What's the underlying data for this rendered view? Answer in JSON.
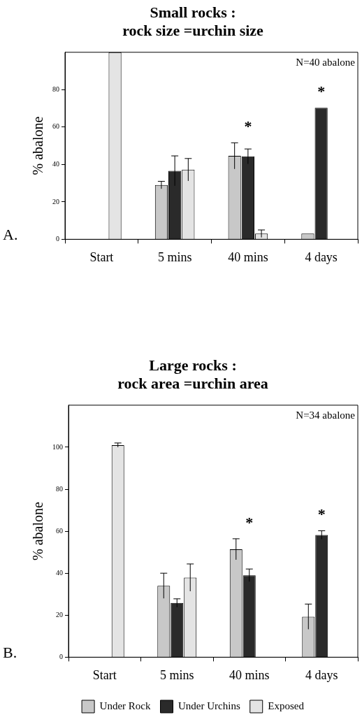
{
  "chart_data": [
    {
      "type": "bar",
      "title": [
        "Small rocks :",
        "rock size =urchin size"
      ],
      "ylabel": "% abalone",
      "categories": [
        "Start",
        "5 mins",
        "40 mins",
        "4 days"
      ],
      "series": [
        {
          "color": "#c8c8c8",
          "values": [
            0,
            29,
            44.6,
            3
          ],
          "errors": [
            null,
            2,
            7,
            null
          ]
        },
        {
          "color": "#2a2a2a",
          "values": [
            0,
            36.6,
            44.3,
            70.3
          ],
          "errors": [
            null,
            8,
            4,
            null
          ]
        },
        {
          "color": "#e4e4e4",
          "values": [
            100,
            37.2,
            3,
            0
          ],
          "errors": [
            null,
            6,
            2,
            null
          ]
        }
      ],
      "ylim": [
        0,
        100
      ],
      "yticks": [
        0,
        20,
        40,
        60,
        80
      ],
      "annotations": [
        "N=40 abalone",
        "A.",
        {
          "text": "*",
          "x": "40 mins",
          "y": 44.6
        },
        {
          "text": "*",
          "x": "4 days",
          "y": 70.3
        }
      ]
    },
    {
      "type": "bar",
      "title": [
        "Large rocks :",
        "rock area =urchin area"
      ],
      "ylabel": "% abalone",
      "categories": [
        "Start",
        "5 mins",
        "40 mins",
        "4 days"
      ],
      "series": [
        {
          "name": "Under Rock",
          "color": "#c8c8c8",
          "values": [
            0,
            34,
            51.4,
            19.3
          ],
          "errors": [
            null,
            6,
            5,
            6
          ]
        },
        {
          "name": "Under Urchins",
          "color": "#2a2a2a",
          "values": [
            0,
            25.8,
            39,
            58.2
          ],
          "errors": [
            null,
            2,
            3,
            2
          ]
        },
        {
          "name": "Exposed",
          "color": "#e4e4e4",
          "values": [
            101,
            37.9,
            0,
            0
          ],
          "errors": [
            1,
            6.5,
            null,
            null
          ]
        }
      ],
      "ylim": [
        0,
        120
      ],
      "yticks": [
        0,
        20,
        40,
        60,
        80,
        100
      ],
      "legend": "bottom",
      "annotations": [
        "N=34 abalone",
        "B.",
        {
          "text": "*",
          "x": "40 mins",
          "y": 39
        },
        {
          "text": "*",
          "x": "4 days",
          "y": 58.2
        }
      ]
    }
  ]
}
